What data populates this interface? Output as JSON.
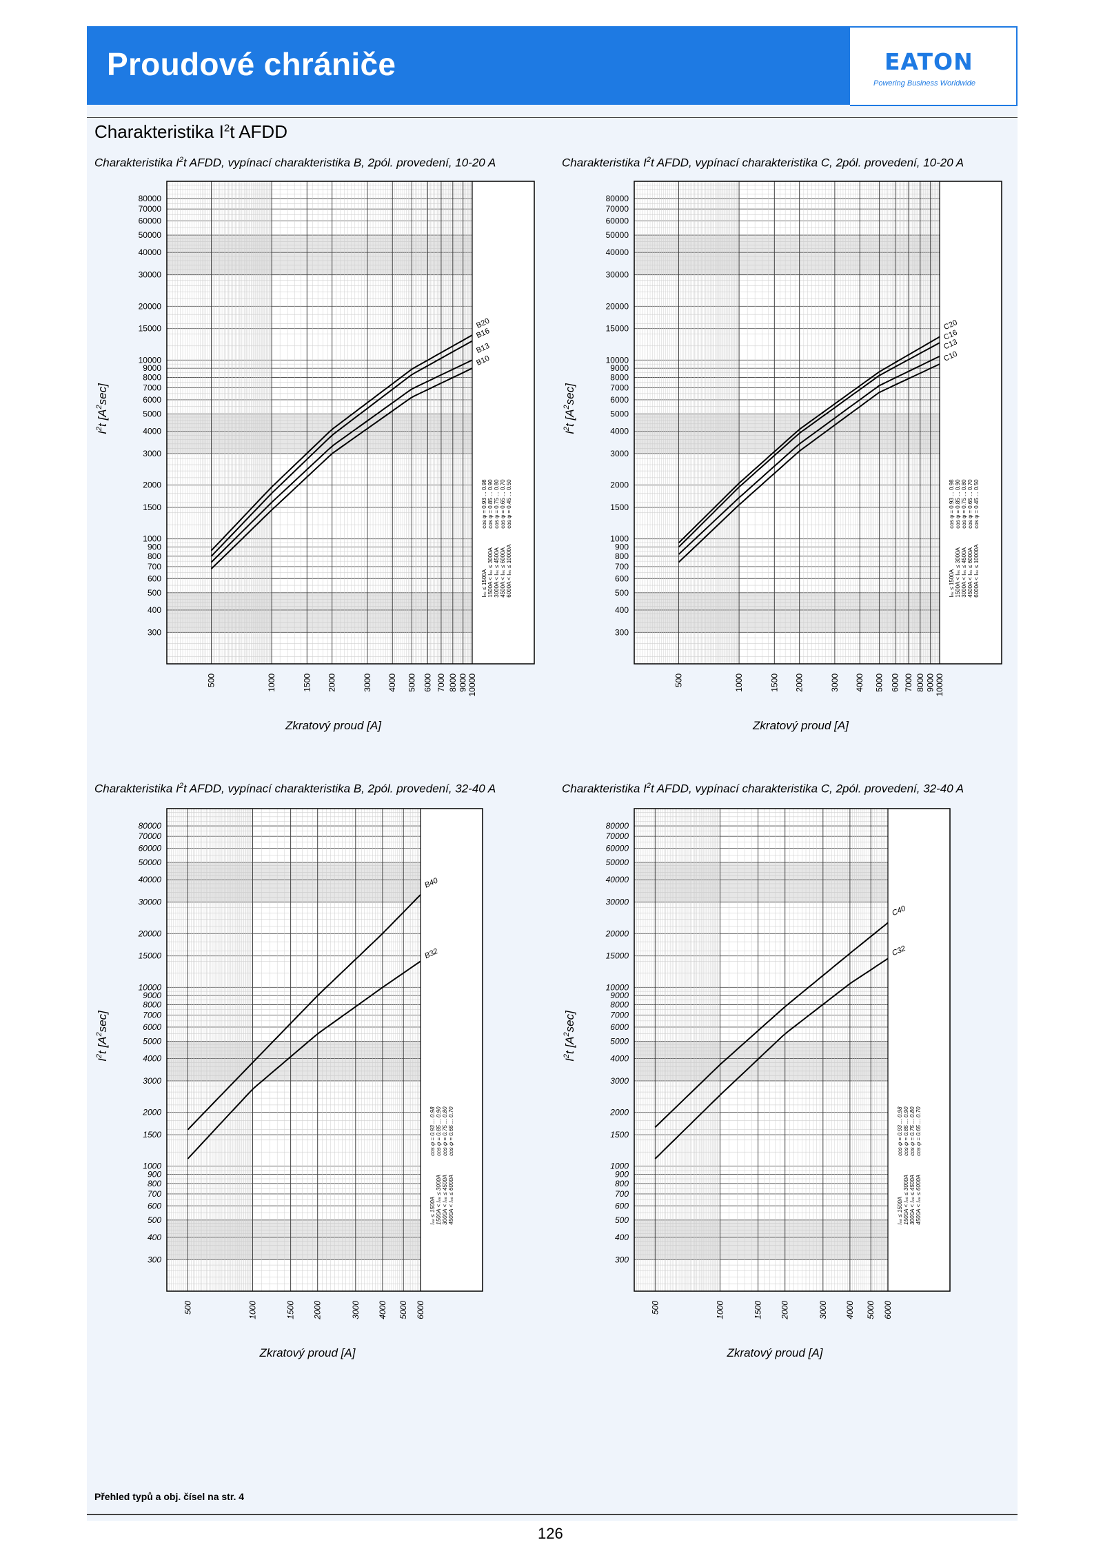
{
  "header": {
    "title": "Proudové chrániče",
    "logo_text": "EATON",
    "logo_tagline": "Powering Business Worldwide",
    "brand_color": "#1e7ae3"
  },
  "section": {
    "title_prefix": "Charakteristika I",
    "title_sup": "2",
    "title_suffix": "t  AFDD"
  },
  "footer": {
    "note": "Přehled typů a obj. čísel na str. 4",
    "page_number": "126"
  },
  "chart_data": [
    {
      "type": "line",
      "title_prefix": "Charakteristika I",
      "title_sup": "2",
      "title_suffix": "t AFDD, vypínací charakteristika B, 2pól. provedení, 10-20 A",
      "xlabel": "Zkratový proud [A]",
      "ylabel_prefix": "I",
      "ylabel_sup": "2",
      "ylabel_mid": "t [A",
      "ylabel_sup2": "2",
      "ylabel_suffix": "sec]",
      "x_scale": "log",
      "y_scale": "log",
      "xlim": [
        300,
        10000
      ],
      "ylim": [
        200,
        100000
      ],
      "x_ticks": [
        "500",
        "1000",
        "1500",
        "2000",
        "3000",
        "4000",
        "5000",
        "6000",
        "7000",
        "8000",
        "9000",
        "10000"
      ],
      "y_ticks": [
        "80000",
        "70000",
        "60000",
        "50000",
        "40000",
        "30000",
        "20000",
        "15000",
        "10000",
        "9000",
        "8000",
        "7000",
        "6000",
        "5000",
        "4000",
        "3000",
        "2000",
        "1500",
        "1000",
        "900",
        "800",
        "700",
        "600",
        "500",
        "400",
        "300"
      ],
      "series": [
        {
          "name": "B20",
          "x": [
            500,
            1000,
            2000,
            5000,
            10000
          ],
          "y": [
            860,
            1950,
            4100,
            8900,
            13800
          ]
        },
        {
          "name": "B16",
          "x": [
            500,
            1000,
            2000,
            5000,
            10000
          ],
          "y": [
            800,
            1800,
            3800,
            8300,
            12800
          ]
        },
        {
          "name": "B13",
          "x": [
            500,
            1000,
            2000,
            5000,
            10000
          ],
          "y": [
            740,
            1600,
            3300,
            6900,
            10000
          ]
        },
        {
          "name": "B10",
          "x": [
            500,
            1000,
            2000,
            5000,
            10000
          ],
          "y": [
            680,
            1450,
            3000,
            6200,
            9000
          ]
        }
      ],
      "table": [
        {
          "range": "Iₙₖ ≤ 1500A",
          "cos": "cos φ = 0.93 ... 0.98"
        },
        {
          "range": "1500A < Iₙₖ ≤ 3000A",
          "cos": "cos φ = 0.85 ... 0.90"
        },
        {
          "range": "3000A < Iₙₖ ≤ 4500A",
          "cos": "cos φ = 0.75 ... 0.80"
        },
        {
          "range": "4500A < Iₙₖ ≤ 6000A",
          "cos": "cos φ = 0.65 ... 0.70"
        },
        {
          "range": "6000A < Iₙₖ ≤ 10000A",
          "cos": "cos φ = 0.45 ... 0.50"
        }
      ]
    },
    {
      "type": "line",
      "title_prefix": "Charakteristika I",
      "title_sup": "2",
      "title_suffix": "t AFDD, vypínací charakteristika C, 2pól. provedení, 10-20 A",
      "xlabel": "Zkratový proud [A]",
      "ylabel_prefix": "I",
      "ylabel_sup": "2",
      "ylabel_mid": "t [A",
      "ylabel_sup2": "2",
      "ylabel_suffix": "sec]",
      "x_scale": "log",
      "y_scale": "log",
      "xlim": [
        300,
        10000
      ],
      "ylim": [
        200,
        100000
      ],
      "x_ticks": [
        "500",
        "1000",
        "1500",
        "2000",
        "3000",
        "4000",
        "5000",
        "6000",
        "7000",
        "8000",
        "9000",
        "10000"
      ],
      "y_ticks": [
        "80000",
        "70000",
        "60000",
        "50000",
        "40000",
        "30000",
        "20000",
        "15000",
        "10000",
        "9000",
        "8000",
        "7000",
        "6000",
        "5000",
        "4000",
        "3000",
        "2000",
        "1500",
        "1000",
        "900",
        "800",
        "700",
        "600",
        "500",
        "400",
        "300"
      ],
      "series": [
        {
          "name": "C20",
          "x": [
            500,
            1000,
            2000,
            5000,
            10000
          ],
          "y": [
            950,
            2050,
            4100,
            8600,
            13500
          ]
        },
        {
          "name": "C16",
          "x": [
            500,
            1000,
            2000,
            5000,
            10000
          ],
          "y": [
            900,
            1950,
            3900,
            8200,
            12500
          ]
        },
        {
          "name": "C13",
          "x": [
            500,
            1000,
            2000,
            5000,
            10000
          ],
          "y": [
            820,
            1700,
            3400,
            7200,
            10500
          ]
        },
        {
          "name": "C10",
          "x": [
            500,
            1000,
            2000,
            5000,
            10000
          ],
          "y": [
            740,
            1550,
            3100,
            6600,
            9500
          ]
        }
      ],
      "table": [
        {
          "range": "Iₙₖ ≤ 1500A",
          "cos": "cos φ = 0.93 ... 0.98"
        },
        {
          "range": "1500A < Iₙₖ ≤ 3000A",
          "cos": "cos φ = 0.85 ... 0.90"
        },
        {
          "range": "3000A < Iₙₖ ≤ 4500A",
          "cos": "cos φ = 0.75 ... 0.80"
        },
        {
          "range": "4500A < Iₙₖ ≤ 6000A",
          "cos": "cos φ = 0.65 ... 0.70"
        },
        {
          "range": "6000A < Iₙₖ ≤ 10000A",
          "cos": "cos φ = 0.45 ... 0.50"
        }
      ]
    },
    {
      "type": "line",
      "title_prefix": "Charakteristika I",
      "title_sup": "2",
      "title_suffix": "t AFDD, vypínací charakteristika B, 2pól. provedení, 32-40 A",
      "xlabel": "Zkratový proud [A]",
      "ylabel_prefix": "I",
      "ylabel_sup": "2",
      "ylabel_mid": "t [A",
      "ylabel_sup2": "2",
      "ylabel_suffix": "sec]",
      "x_scale": "log",
      "y_scale": "log",
      "xlim": [
        400,
        6000
      ],
      "ylim": [
        200,
        100000
      ],
      "x_ticks": [
        "500",
        "1000",
        "1500",
        "2000",
        "3000",
        "4000",
        "5000",
        "6000"
      ],
      "y_ticks": [
        "80000",
        "70000",
        "60000",
        "50000",
        "40000",
        "30000",
        "20000",
        "15000",
        "10000",
        "9000",
        "8000",
        "7000",
        "6000",
        "5000",
        "4000",
        "3000",
        "2000",
        "1500",
        "1000",
        "900",
        "800",
        "700",
        "600",
        "500",
        "400",
        "300"
      ],
      "series": [
        {
          "name": "B40",
          "x": [
            500,
            1000,
            2000,
            4000,
            6000
          ],
          "y": [
            1600,
            3800,
            9000,
            20000,
            33000
          ]
        },
        {
          "name": "B32",
          "x": [
            500,
            1000,
            2000,
            4000,
            6000
          ],
          "y": [
            1100,
            2700,
            5500,
            10000,
            14000
          ]
        }
      ],
      "table": [
        {
          "range": "Iₙₖ ≤ 1500A",
          "cos": "cos φ = 0.93 ... 0.98"
        },
        {
          "range": "1500A < Iₙₖ ≤ 3000A",
          "cos": "cos φ = 0.85 ... 0.90"
        },
        {
          "range": "3000A < Iₙₖ ≤ 4500A",
          "cos": "cos φ = 0.75 ... 0.80"
        },
        {
          "range": "4500A < Iₙₖ ≤ 6000A",
          "cos": "cos φ = 0.65 ... 0.70"
        }
      ]
    },
    {
      "type": "line",
      "title_prefix": "Charakteristika I",
      "title_sup": "2",
      "title_suffix": "t AFDD, vypínací charakteristika C, 2pól. provedení, 32-40 A",
      "xlabel": "Zkratový proud [A]",
      "ylabel_prefix": "I",
      "ylabel_sup": "2",
      "ylabel_mid": "t [A",
      "ylabel_sup2": "2",
      "ylabel_suffix": "sec]",
      "x_scale": "log",
      "y_scale": "log",
      "xlim": [
        400,
        6000
      ],
      "ylim": [
        200,
        100000
      ],
      "x_ticks": [
        "500",
        "1000",
        "1500",
        "2000",
        "3000",
        "4000",
        "5000",
        "6000"
      ],
      "y_ticks": [
        "80000",
        "70000",
        "60000",
        "50000",
        "40000",
        "30000",
        "20000",
        "15000",
        "10000",
        "9000",
        "8000",
        "7000",
        "6000",
        "5000",
        "4000",
        "3000",
        "2000",
        "1500",
        "1000",
        "900",
        "800",
        "700",
        "600",
        "500",
        "400",
        "300"
      ],
      "series": [
        {
          "name": "C40",
          "x": [
            500,
            1000,
            2000,
            4000,
            6000
          ],
          "y": [
            1650,
            3700,
            7800,
            15500,
            23000
          ]
        },
        {
          "name": "C32",
          "x": [
            500,
            1000,
            2000,
            4000,
            6000
          ],
          "y": [
            1100,
            2500,
            5500,
            10500,
            14500
          ]
        }
      ],
      "table": [
        {
          "range": "Iₙₖ ≤ 1500A",
          "cos": "cos φ = 0.93 ... 0.98"
        },
        {
          "range": "1500A < Iₙₖ ≤ 3000A",
          "cos": "cos φ = 0.85 ... 0.90"
        },
        {
          "range": "3000A < Iₙₖ ≤ 4500A",
          "cos": "cos φ = 0.75 ... 0.80"
        },
        {
          "range": "4500A < Iₙₖ ≤ 6000A",
          "cos": "cos φ = 0.65 ... 0.70"
        }
      ]
    }
  ]
}
